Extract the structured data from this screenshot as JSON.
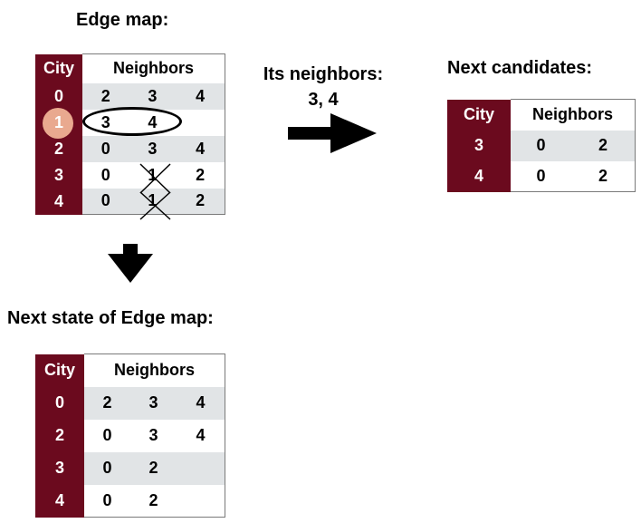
{
  "edge_map": {
    "title": "Edge map:",
    "header": {
      "city": "City",
      "neighbors": "Neighbors"
    },
    "rows": [
      {
        "city": "0",
        "n1": "2",
        "n2": "3",
        "n3": "4"
      },
      {
        "city": "1",
        "n1": "3",
        "n2": "4",
        "n3": ""
      },
      {
        "city": "2",
        "n1": "0",
        "n2": "3",
        "n3": "4"
      },
      {
        "city": "3",
        "n1": "0",
        "n2": "1",
        "n3": "2"
      },
      {
        "city": "4",
        "n1": "0",
        "n2": "1",
        "n3": "2"
      }
    ]
  },
  "its_neighbors": {
    "line1": "Its neighbors:",
    "line2": "3, 4"
  },
  "next_candidates": {
    "title": "Next candidates:",
    "header": {
      "city": "City",
      "neighbors": "Neighbors"
    },
    "rows": [
      {
        "city": "3",
        "n1": "0",
        "n2": "2"
      },
      {
        "city": "4",
        "n1": "0",
        "n2": "2"
      }
    ]
  },
  "next_state": {
    "title": "Next state of Edge map:",
    "header": {
      "city": "City",
      "neighbors": "Neighbors"
    },
    "rows": [
      {
        "city": "0",
        "n1": "2",
        "n2": "3",
        "n3": "4"
      },
      {
        "city": "2",
        "n1": "0",
        "n2": "3",
        "n3": "4"
      },
      {
        "city": "3",
        "n1": "0",
        "n2": "2",
        "n3": ""
      },
      {
        "city": "4",
        "n1": "0",
        "n2": "2",
        "n3": ""
      }
    ]
  },
  "colors": {
    "city_column": "#6b0a1e",
    "row_shade": "#e1e4e6",
    "selected_city_circle": "#e9a98f"
  }
}
